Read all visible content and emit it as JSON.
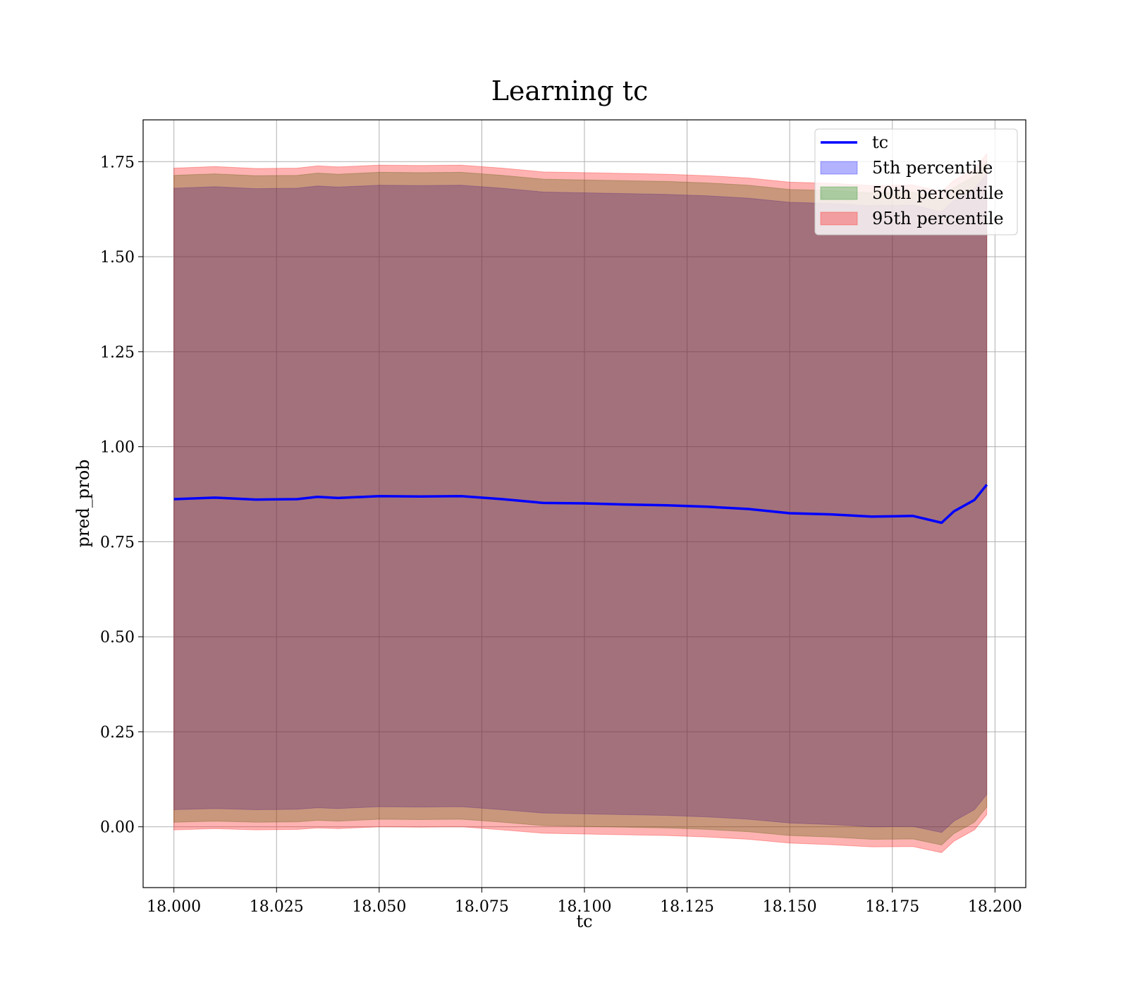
{
  "chart_data": {
    "type": "area",
    "title": "Learning tc",
    "xlabel": "tc",
    "ylabel": "pred_prob",
    "xlim": [
      17.9925,
      18.2075
    ],
    "ylim": [
      -0.16,
      1.86
    ],
    "grid": true,
    "legend_position": "top-right",
    "x_ticks": [
      18.0,
      18.025,
      18.05,
      18.075,
      18.1,
      18.125,
      18.15,
      18.175,
      18.2
    ],
    "x_tick_labels": [
      "18.000",
      "18.025",
      "18.050",
      "18.075",
      "18.100",
      "18.125",
      "18.150",
      "18.175",
      "18.200"
    ],
    "y_ticks": [
      0.0,
      0.25,
      0.5,
      0.75,
      1.0,
      1.25,
      1.5,
      1.75
    ],
    "y_tick_labels": [
      "0.00",
      "0.25",
      "0.50",
      "0.75",
      "1.00",
      "1.25",
      "1.50",
      "1.75"
    ],
    "x": [
      18.0,
      18.01,
      18.02,
      18.03,
      18.035,
      18.04,
      18.05,
      18.06,
      18.07,
      18.08,
      18.09,
      18.1,
      18.11,
      18.12,
      18.13,
      18.14,
      18.15,
      18.16,
      18.17,
      18.18,
      18.187,
      18.19,
      18.195,
      18.198
    ],
    "series": [
      {
        "name": "tc",
        "kind": "line",
        "color": "#0000ff",
        "values": [
          0.862,
          0.866,
          0.861,
          0.862,
          0.868,
          0.865,
          0.87,
          0.869,
          0.87,
          0.862,
          0.852,
          0.851,
          0.848,
          0.846,
          0.842,
          0.836,
          0.825,
          0.822,
          0.816,
          0.818,
          0.8,
          0.83,
          0.86,
          0.9
        ]
      },
      {
        "name": "5th percentile",
        "kind": "band",
        "color": "#0000ff",
        "lower": [
          0.045,
          0.048,
          0.045,
          0.046,
          0.05,
          0.048,
          0.053,
          0.052,
          0.053,
          0.045,
          0.036,
          0.034,
          0.032,
          0.03,
          0.026,
          0.02,
          0.01,
          0.006,
          0.0,
          0.001,
          -0.015,
          0.015,
          0.045,
          0.085
        ],
        "upper": [
          1.68,
          1.684,
          1.679,
          1.68,
          1.686,
          1.683,
          1.688,
          1.687,
          1.688,
          1.68,
          1.67,
          1.668,
          1.666,
          1.664,
          1.66,
          1.654,
          1.643,
          1.64,
          1.634,
          1.636,
          1.618,
          1.648,
          1.678,
          1.718
        ]
      },
      {
        "name": "50th percentile",
        "kind": "band",
        "color": "#008000",
        "lower": [
          0.012,
          0.015,
          0.012,
          0.013,
          0.017,
          0.015,
          0.02,
          0.019,
          0.02,
          0.012,
          0.003,
          0.001,
          -0.001,
          -0.003,
          -0.007,
          -0.013,
          -0.023,
          -0.027,
          -0.033,
          -0.032,
          -0.048,
          -0.018,
          0.012,
          0.052
        ],
        "upper": [
          1.714,
          1.718,
          1.713,
          1.714,
          1.72,
          1.717,
          1.722,
          1.721,
          1.722,
          1.714,
          1.704,
          1.702,
          1.7,
          1.698,
          1.694,
          1.688,
          1.677,
          1.674,
          1.668,
          1.67,
          1.652,
          1.682,
          1.712,
          1.752
        ]
      },
      {
        "name": "95th percentile",
        "kind": "band",
        "color": "#ff0000",
        "lower": [
          -0.008,
          -0.005,
          -0.008,
          -0.007,
          -0.003,
          -0.005,
          0.0,
          -0.001,
          0.0,
          -0.008,
          -0.017,
          -0.019,
          -0.021,
          -0.023,
          -0.027,
          -0.033,
          -0.043,
          -0.047,
          -0.053,
          -0.052,
          -0.068,
          -0.038,
          -0.008,
          0.032
        ],
        "upper": [
          1.733,
          1.737,
          1.732,
          1.733,
          1.739,
          1.736,
          1.741,
          1.74,
          1.741,
          1.733,
          1.723,
          1.721,
          1.719,
          1.717,
          1.713,
          1.707,
          1.696,
          1.693,
          1.687,
          1.689,
          1.671,
          1.701,
          1.731,
          1.771
        ]
      }
    ]
  },
  "legend": {
    "items": [
      {
        "label": "tc",
        "kind": "line",
        "color": "#0000ff"
      },
      {
        "label": "5th percentile",
        "kind": "patch",
        "color": "#0000ff"
      },
      {
        "label": "50th percentile",
        "kind": "patch",
        "color": "#008000"
      },
      {
        "label": "95th percentile",
        "kind": "patch",
        "color": "#ff0000"
      }
    ]
  }
}
